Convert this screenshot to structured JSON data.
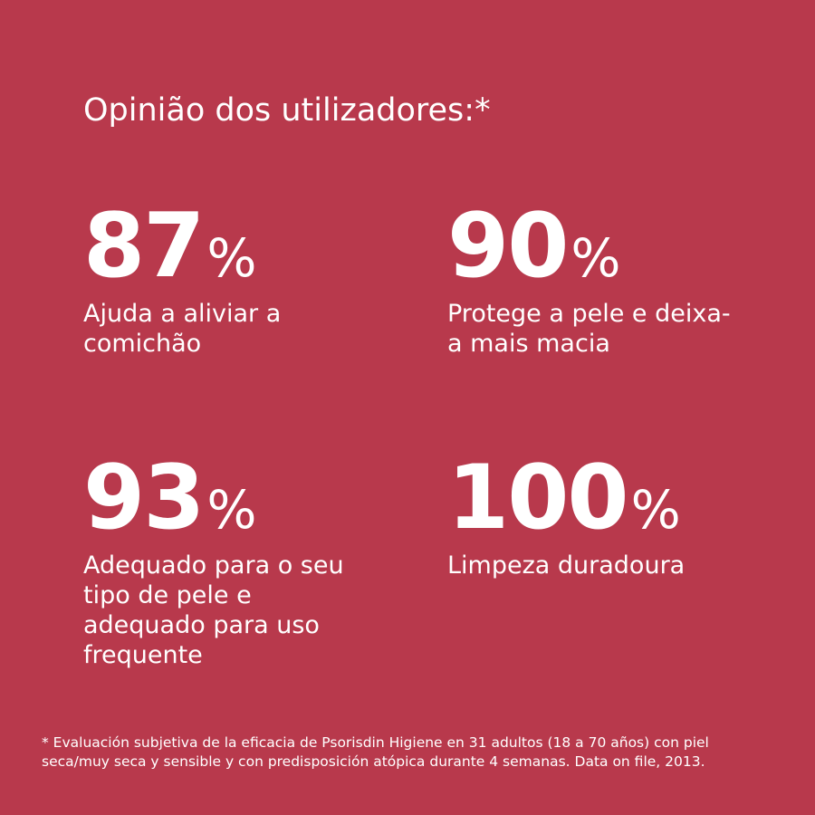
{
  "colors": {
    "background": "#b8394c",
    "text": "#ffffff"
  },
  "title": "Opinião dos utilizadores:*",
  "stats": [
    {
      "value": "87",
      "unit": "%",
      "description": "Ajuda a aliviar a comichão"
    },
    {
      "value": "90",
      "unit": "%",
      "description": "Protege a pele e deixa-a mais macia"
    },
    {
      "value": "93",
      "unit": "%",
      "description": "Adequado para o seu tipo de pele e adequado para uso frequente"
    },
    {
      "value": "100",
      "unit": "%",
      "description": "Limpeza duradoura"
    }
  ],
  "footnote": "* Evaluación subjetiva de la eficacia de Psorisdin Higiene en 31 adultos (18 a 70 años) con piel seca/muy seca y sensible y con predisposición atópica durante 4 semanas. Data on file, 2013."
}
